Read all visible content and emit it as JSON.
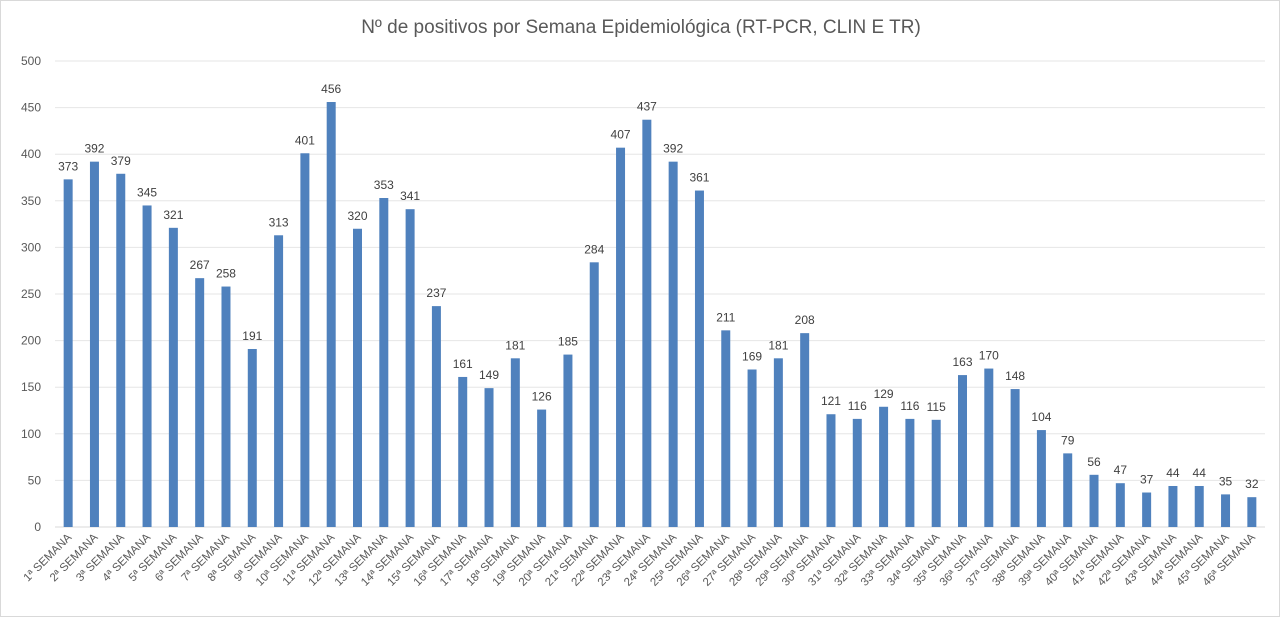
{
  "chart_data": {
    "type": "bar",
    "title": "Nº de positivos por Semana Epidemiológica (RT-PCR, CLIN E TR)",
    "xlabel": "",
    "ylabel": "",
    "ylim": [
      0,
      500
    ],
    "yticks": [
      0,
      50,
      100,
      150,
      200,
      250,
      300,
      350,
      400,
      450,
      500
    ],
    "grid": true,
    "bar_color": "#4f81bd",
    "categories": [
      "1ª SEMANA",
      "2ª SEMANA",
      "3ª SEMANA",
      "4ª SEMANA",
      "5ª SEMANA",
      "6ª SEMANA",
      "7ª SEMANA",
      "8ª SEMANA",
      "9ª SEMANA",
      "10ª SEMANA",
      "11ª SEMANA",
      "12ª SEMANA",
      "13ª SEMANA",
      "14ª SEMANA",
      "15ª SEMANA",
      "16ª SEMANA",
      "17ª SEMANA",
      "18ª SEMANA",
      "19ª SEMANA",
      "20ª SEMANA",
      "21ª SEMANA",
      "22ª SEMANA",
      "23ª SEMANA",
      "24ª SEMANA",
      "25ª SEMANA",
      "26ª SEMANA",
      "27ª SEMANA",
      "28ª SEMANA",
      "29ª SEMANA",
      "30ª SEMANA",
      "31ª SEMANA",
      "32ª SEMANA",
      "33ª SEMANA",
      "34ª SEMANA",
      "35ª SEMANA",
      "36ª SEMANA",
      "37ª SEMANA",
      "38ª SEMANA",
      "39ª SEMANA",
      "40ª SEMANA",
      "41ª SEMANA",
      "42ª SEMANA",
      "43ª SEMANA",
      "44ª SEMANA",
      "45ª SEMANA",
      "46ª SEMANA"
    ],
    "values": [
      373,
      392,
      379,
      345,
      321,
      267,
      258,
      191,
      313,
      401,
      456,
      320,
      353,
      341,
      237,
      161,
      149,
      181,
      126,
      185,
      284,
      407,
      437,
      392,
      361,
      211,
      169,
      181,
      208,
      121,
      116,
      129,
      116,
      115,
      163,
      170,
      148,
      104,
      79,
      56,
      47,
      37,
      44,
      44,
      35,
      32
    ]
  }
}
